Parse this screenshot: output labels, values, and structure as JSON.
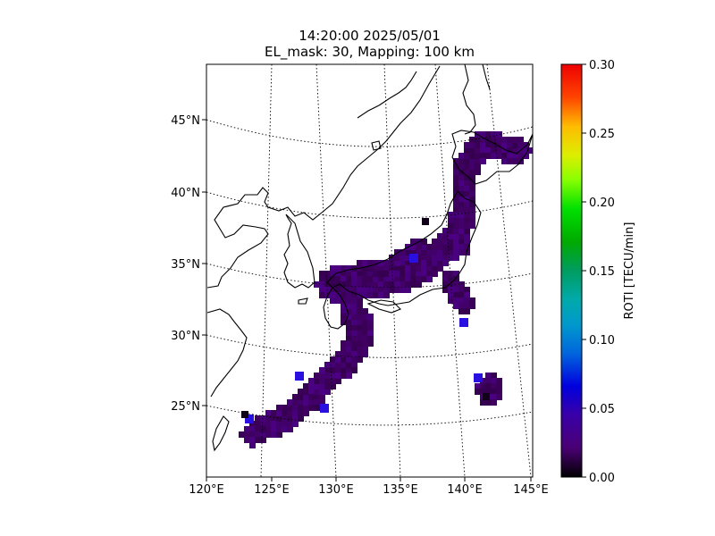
{
  "title": {
    "line1": "14:20:00 2025/05/01",
    "line2": "EL_mask: 30, Mapping: 100 km"
  },
  "map": {
    "lon_range": [
      120,
      145
    ],
    "lat_range": [
      20,
      49
    ],
    "lat_ticks": [
      "45°N",
      "40°N",
      "35°N",
      "30°N",
      "25°N"
    ],
    "lon_ticks": [
      "120°E",
      "125°E",
      "130°E",
      "135°E",
      "140°E",
      "145°E"
    ],
    "gridlines": "dotted",
    "coastline_color": "#000000"
  },
  "colorbar": {
    "label": "ROTI [TECU/min]",
    "ticks": [
      "0.00",
      "0.05",
      "0.10",
      "0.15",
      "0.20",
      "0.25",
      "0.30"
    ],
    "range": [
      0.0,
      0.3
    ],
    "colormap": "nipy_spectral"
  },
  "chart_data": {
    "type": "heatmap",
    "variable": "ROTI",
    "units": "TECU/min",
    "range": [
      0.0,
      0.3
    ],
    "dominant_value_range": [
      0.03,
      0.05
    ],
    "high_value_spots_lon_lat": [
      [
        139.8,
        31.0
      ],
      [
        141.0,
        27.0
      ],
      [
        127.5,
        27.0
      ],
      [
        134.5,
        35.5
      ]
    ],
    "coverage": "Japanese archipelago and Ryukyu islands"
  }
}
